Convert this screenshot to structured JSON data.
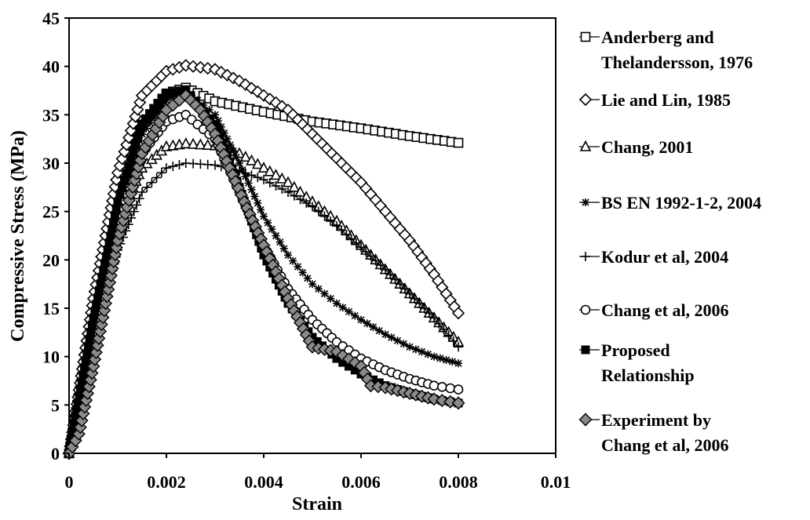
{
  "chart_data": {
    "type": "line",
    "title": "",
    "xlabel": "Strain",
    "ylabel": "Compressive Stress (MPa)",
    "xlim": [
      0,
      0.01
    ],
    "ylim": [
      0,
      45
    ],
    "xticks": [
      "0",
      "0.002",
      "0.004",
      "0.006",
      "0.008",
      "0.01"
    ],
    "yticks": [
      "0",
      "5",
      "10",
      "15",
      "20",
      "25",
      "30",
      "35",
      "40",
      "45"
    ],
    "grid": false,
    "legend_position": "right",
    "series": [
      {
        "name": "Anderberg and Thelandersson, 1976",
        "marker": "square-open",
        "points": [
          [
            0,
            0
          ],
          [
            0.0005,
            15
          ],
          [
            0.001,
            27
          ],
          [
            0.0015,
            34
          ],
          [
            0.002,
            37.2
          ],
          [
            0.0024,
            37.8
          ],
          [
            0.003,
            36.4
          ],
          [
            0.004,
            35.3
          ],
          [
            0.005,
            34.3
          ],
          [
            0.006,
            33.6
          ],
          [
            0.007,
            32.8
          ],
          [
            0.008,
            32.1
          ]
        ]
      },
      {
        "name": "Lie and Lin, 1985",
        "marker": "diamond-open",
        "points": [
          [
            0,
            0
          ],
          [
            0.0005,
            16
          ],
          [
            0.001,
            29
          ],
          [
            0.0015,
            37
          ],
          [
            0.002,
            39.5
          ],
          [
            0.0024,
            40.1
          ],
          [
            0.003,
            39.7
          ],
          [
            0.0035,
            38.5
          ],
          [
            0.004,
            37
          ],
          [
            0.0045,
            35.5
          ],
          [
            0.005,
            33
          ],
          [
            0.0055,
            30.5
          ],
          [
            0.006,
            28
          ],
          [
            0.0065,
            25
          ],
          [
            0.007,
            22
          ],
          [
            0.0075,
            18.5
          ],
          [
            0.008,
            14.5
          ]
        ]
      },
      {
        "name": "Chang, 2001",
        "marker": "triangle-open",
        "points": [
          [
            0,
            0
          ],
          [
            0.0005,
            13
          ],
          [
            0.001,
            24
          ],
          [
            0.0015,
            29.5
          ],
          [
            0.002,
            31.7
          ],
          [
            0.0024,
            32
          ],
          [
            0.003,
            31.8
          ],
          [
            0.0035,
            31
          ],
          [
            0.004,
            29.5
          ],
          [
            0.0045,
            28
          ],
          [
            0.005,
            26
          ],
          [
            0.0055,
            24
          ],
          [
            0.006,
            21.5
          ],
          [
            0.0065,
            19
          ],
          [
            0.007,
            16.5
          ],
          [
            0.0075,
            14
          ],
          [
            0.008,
            11.5
          ]
        ]
      },
      {
        "name": "BS EN 1992-1-2, 2004",
        "marker": "star",
        "points": [
          [
            0,
            0
          ],
          [
            0.0005,
            14
          ],
          [
            0.001,
            26
          ],
          [
            0.0015,
            33
          ],
          [
            0.002,
            36.5
          ],
          [
            0.0024,
            37.5
          ],
          [
            0.003,
            35
          ],
          [
            0.0035,
            30
          ],
          [
            0.004,
            24.5
          ],
          [
            0.0045,
            20.5
          ],
          [
            0.005,
            17.5
          ],
          [
            0.0055,
            15.5
          ],
          [
            0.006,
            13.8
          ],
          [
            0.0065,
            12.3
          ],
          [
            0.007,
            11
          ],
          [
            0.0075,
            10
          ],
          [
            0.008,
            9.3
          ]
        ]
      },
      {
        "name": "Kodur et al, 2004",
        "marker": "plus",
        "points": [
          [
            0,
            0
          ],
          [
            0.0005,
            11
          ],
          [
            0.001,
            21
          ],
          [
            0.0015,
            27
          ],
          [
            0.002,
            29.5
          ],
          [
            0.0024,
            30
          ],
          [
            0.003,
            29.8
          ],
          [
            0.0035,
            29.2
          ],
          [
            0.004,
            28.3
          ],
          [
            0.0045,
            27
          ],
          [
            0.005,
            25.5
          ],
          [
            0.0055,
            23.5
          ],
          [
            0.006,
            21.3
          ],
          [
            0.0065,
            19
          ],
          [
            0.007,
            16.5
          ],
          [
            0.0075,
            14
          ],
          [
            0.008,
            11
          ]
        ]
      },
      {
        "name": "Chang et al, 2006",
        "marker": "circle-open",
        "points": [
          [
            0,
            0
          ],
          [
            0.0005,
            13
          ],
          [
            0.001,
            24
          ],
          [
            0.0015,
            31
          ],
          [
            0.002,
            34.3
          ],
          [
            0.0024,
            35
          ],
          [
            0.003,
            32.5
          ],
          [
            0.0035,
            27
          ],
          [
            0.004,
            21.5
          ],
          [
            0.0045,
            17
          ],
          [
            0.005,
            13.8
          ],
          [
            0.0055,
            11.5
          ],
          [
            0.006,
            9.8
          ],
          [
            0.0065,
            8.6
          ],
          [
            0.007,
            7.7
          ],
          [
            0.0075,
            7
          ],
          [
            0.008,
            6.6
          ]
        ]
      },
      {
        "name": "Proposed Relationship",
        "marker": "square-filled",
        "points": [
          [
            0,
            0
          ],
          [
            0.0005,
            14
          ],
          [
            0.001,
            26
          ],
          [
            0.0015,
            34
          ],
          [
            0.002,
            37.2
          ],
          [
            0.0024,
            37.6
          ],
          [
            0.003,
            34
          ],
          [
            0.0035,
            27.5
          ],
          [
            0.004,
            20.5
          ],
          [
            0.0045,
            15.5
          ],
          [
            0.005,
            12
          ],
          [
            0.0055,
            9.8
          ],
          [
            0.006,
            8.2
          ],
          [
            0.0065,
            7
          ],
          [
            0.007,
            6.2
          ],
          [
            0.0075,
            5.6
          ],
          [
            0.008,
            5.2
          ]
        ]
      },
      {
        "name": "Experiment by Chang et al, 2006",
        "marker": "diamond-filled",
        "points": [
          [
            0,
            0
          ],
          [
            0.0002,
            2
          ],
          [
            0.0005,
            9
          ],
          [
            0.001,
            22
          ],
          [
            0.0015,
            31
          ],
          [
            0.002,
            35.5
          ],
          [
            0.0024,
            37
          ],
          [
            0.0027,
            35.5
          ],
          [
            0.003,
            33
          ],
          [
            0.0033,
            29.5
          ],
          [
            0.0036,
            26
          ],
          [
            0.004,
            21.5
          ],
          [
            0.0045,
            16
          ],
          [
            0.005,
            11
          ],
          [
            0.0055,
            10.5
          ],
          [
            0.006,
            9
          ],
          [
            0.0062,
            7
          ],
          [
            0.0065,
            6.8
          ],
          [
            0.007,
            6.2
          ],
          [
            0.0075,
            5.6
          ],
          [
            0.008,
            5.2
          ]
        ]
      }
    ]
  }
}
